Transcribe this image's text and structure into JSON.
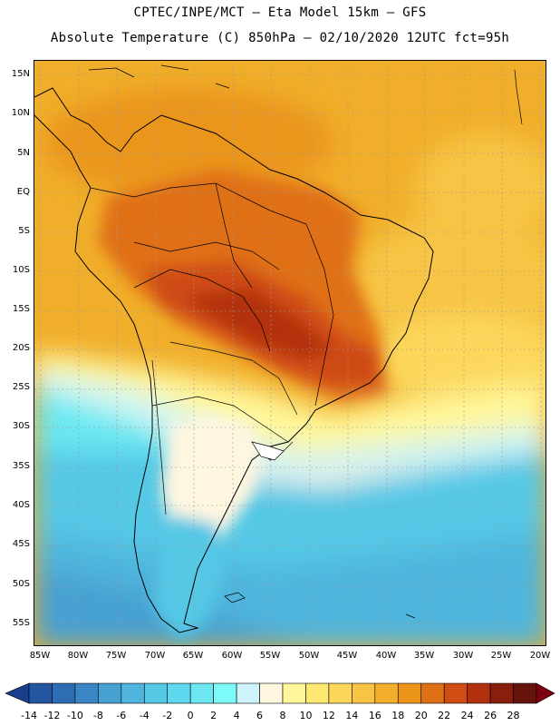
{
  "header": {
    "line1": "CPTEC/INPE/MCT –  Eta Model 15km – GFS",
    "line2": "Absolute Temperature (C) 850hPa – 02/10/2020 12UTC fct=95h"
  },
  "map": {
    "lat_labels": [
      "15N",
      "10N",
      "5N",
      "EQ",
      "5S",
      "10S",
      "15S",
      "20S",
      "25S",
      "30S",
      "35S",
      "40S",
      "45S",
      "50S",
      "55S"
    ],
    "lon_labels": [
      "85W",
      "80W",
      "75W",
      "70W",
      "65W",
      "60W",
      "55W",
      "50W",
      "45W",
      "40W",
      "35W",
      "30W",
      "25W",
      "20W"
    ]
  },
  "colorbar": {
    "labels": [
      "-14",
      "-12",
      "-10",
      "-8",
      "-6",
      "-4",
      "-2",
      "0",
      "2",
      "4",
      "6",
      "8",
      "10",
      "12",
      "14",
      "16",
      "18",
      "20",
      "22",
      "24",
      "26",
      "28"
    ],
    "colors": [
      "#1a3d8c",
      "#2355a0",
      "#2d6db3",
      "#3a86c4",
      "#47a0d2",
      "#4fb5dd",
      "#55c8e6",
      "#5ed8ee",
      "#6be8f2",
      "#7dfafa",
      "#cdf4fb",
      "#fff6e0",
      "#fff79a",
      "#ffe773",
      "#fcd75b",
      "#f7c444",
      "#f1ae2a",
      "#ea951a",
      "#e07015",
      "#cf4c12",
      "#b3300f",
      "#8a1e0d",
      "#66130b",
      "#7a0012"
    ]
  }
}
